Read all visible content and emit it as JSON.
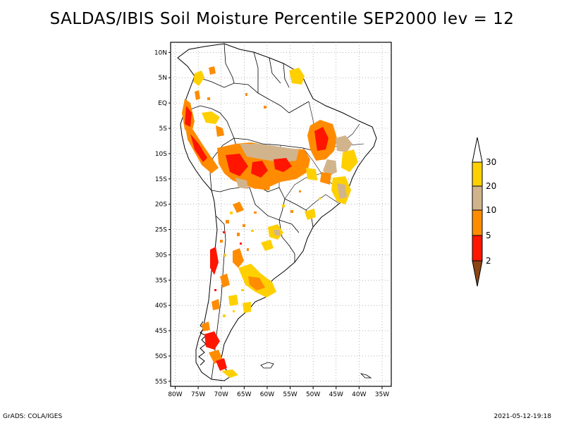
{
  "title": "SALDAS/IBIS Soil Moisture Percentile SEP2000 lev = 12",
  "map": {
    "lon_labels": [
      "80W",
      "75W",
      "70W",
      "65W",
      "60W",
      "55W",
      "50W",
      "45W",
      "40W",
      "35W"
    ],
    "lat_labels": [
      "10N",
      "5N",
      "EQ",
      "5S",
      "10S",
      "15S",
      "20S",
      "25S",
      "30S",
      "35S",
      "40S",
      "45S",
      "50S",
      "55S"
    ],
    "lon_range": [
      -81,
      -33
    ],
    "lat_range": [
      -56,
      12
    ],
    "gridlines": true
  },
  "colorbar": {
    "labels": [
      "30",
      "20",
      "10",
      "5",
      "2"
    ],
    "colors": {
      "above_30": "#ffffff",
      "20_30": "#ffd000",
      "10_20": "#d2b48c",
      "5_10": "#ff8c00",
      "2_5": "#ff1500",
      "below_2": "#8b4513"
    }
  },
  "footer": {
    "left": "GrADS: COLA/IGES",
    "right": "2021-05-12-19:18"
  }
}
